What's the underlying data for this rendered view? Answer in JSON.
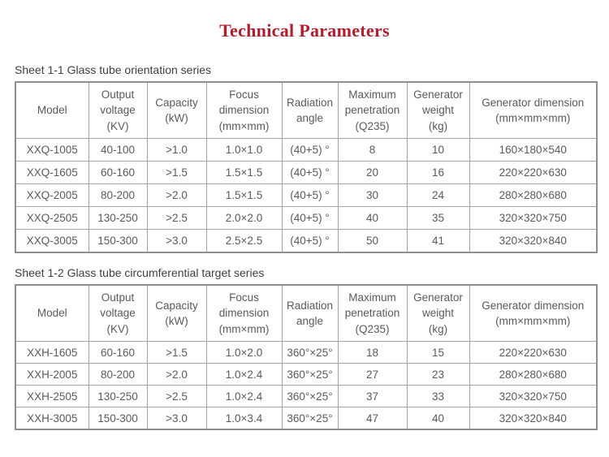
{
  "page": {
    "title": "Technical Parameters"
  },
  "colors": {
    "title_red": "#b01e2e",
    "table_border_outer": "#8d8e90",
    "table_border_inner": "#a2a3a5",
    "table_text": "#595a5c"
  },
  "sheet1": {
    "caption": "Sheet 1-1 Glass tube orientation series",
    "headers": [
      "Model",
      "Output\nvoltage\n(KV)",
      "Capacity\n(kW)",
      "Focus\ndimension\n(mm×mm)",
      "Radiation\nangle",
      "Maximum\npenetration\n(Q235)",
      "Generator\nweight\n(kg)",
      "Generator dimension\n(mm×mm×mm)"
    ],
    "rows": [
      [
        "XXQ-1005",
        "40-100",
        ">1.0",
        "1.0×1.0",
        "(40+5) °",
        "8",
        "10",
        "160×180×540"
      ],
      [
        "XXQ-1605",
        "60-160",
        ">1.5",
        "1.5×1.5",
        "(40+5) °",
        "20",
        "16",
        "220×220×630"
      ],
      [
        "XXQ-2005",
        "80-200",
        ">2.0",
        "1.5×1.5",
        "(40+5) °",
        "30",
        "24",
        "280×280×680"
      ],
      [
        "XXQ-2505",
        "130-250",
        ">2.5",
        "2.0×2.0",
        "(40+5) °",
        "40",
        "35",
        "320×320×750"
      ],
      [
        "XXQ-3005",
        "150-300",
        ">3.0",
        "2.5×2.5",
        "(40+5) °",
        "50",
        "41",
        "320×320×840"
      ]
    ]
  },
  "sheet2": {
    "caption": "Sheet 1-2 Glass tube circumferential target series",
    "headers": [
      "Model",
      "Output\nvoltage\n(KV)",
      "Capacity\n(kW)",
      "Focus\ndimension\n(mm×mm)",
      "Radiation\nangle",
      "Maximum\npenetration\n(Q235)",
      "Generator\nweight\n(kg)",
      "Generator dimension\n(mm×mm×mm)"
    ],
    "rows": [
      [
        "XXH-1605",
        "60-160",
        ">1.5",
        "1.0×2.0",
        "360°×25°",
        "18",
        "15",
        "220×220×630"
      ],
      [
        "XXH-2005",
        "80-200",
        ">2.0",
        "1.0×2.4",
        "360°×25°",
        "27",
        "23",
        "280×280×680"
      ],
      [
        "XXH-2505",
        "130-250",
        ">2.5",
        "1.0×2.4",
        "360°×25°",
        "37",
        "33",
        "320×320×750"
      ],
      [
        "XXH-3005",
        "150-300",
        ">3.0",
        "1.0×3.4",
        "360°×25°",
        "47",
        "40",
        "320×320×840"
      ]
    ]
  }
}
